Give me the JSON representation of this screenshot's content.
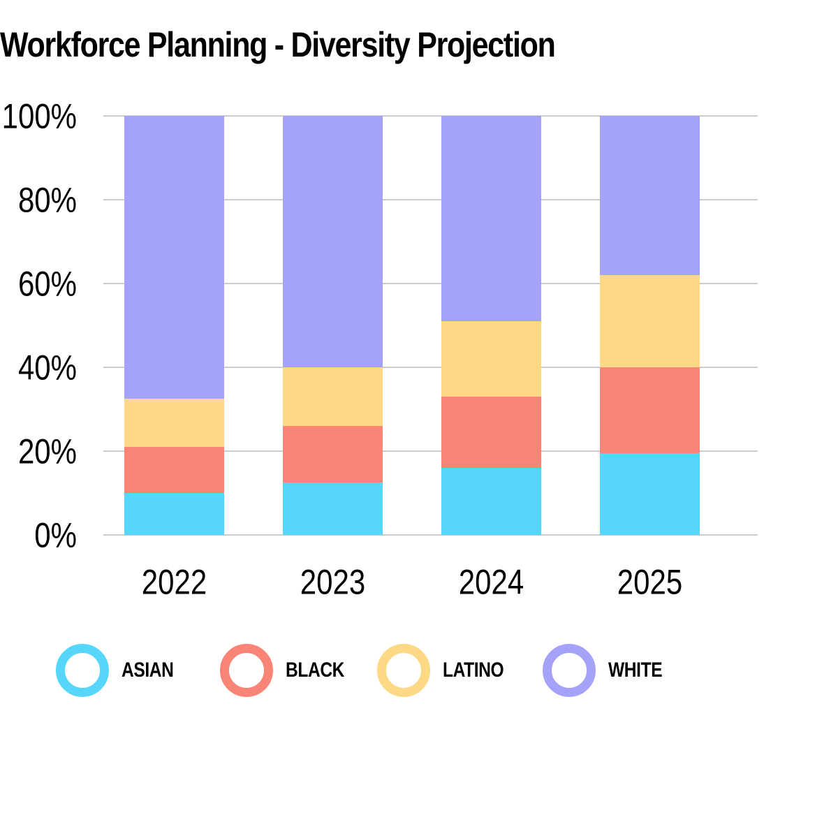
{
  "chart_data": {
    "type": "bar",
    "stacked": true,
    "normalized": true,
    "title": "Workforce Planning - Diversity Projection",
    "xlabel": "",
    "ylabel": "",
    "categories": [
      "2022",
      "2023",
      "2024",
      "2025"
    ],
    "series": [
      {
        "name": "ASIAN",
        "color": "#56D6FB",
        "values": [
          10,
          12.5,
          16,
          19.5
        ]
      },
      {
        "name": "BLACK",
        "color": "#FA8577",
        "values": [
          11,
          13.5,
          17,
          20.5
        ]
      },
      {
        "name": "LATINO",
        "color": "#FDD986",
        "values": [
          11.5,
          14,
          18,
          22
        ]
      },
      {
        "name": "WHITE",
        "color": "#A5A2F9",
        "values": [
          67.5,
          60,
          49,
          38
        ]
      }
    ],
    "ylim": [
      0,
      100
    ],
    "yticks": [
      0,
      20,
      40,
      60,
      80,
      100
    ],
    "ytick_labels": [
      "0%",
      "20%",
      "40%",
      "60%",
      "80%",
      "100%"
    ],
    "grid": true,
    "grid_color": "#CCCCCC",
    "legend_position": "bottom"
  }
}
